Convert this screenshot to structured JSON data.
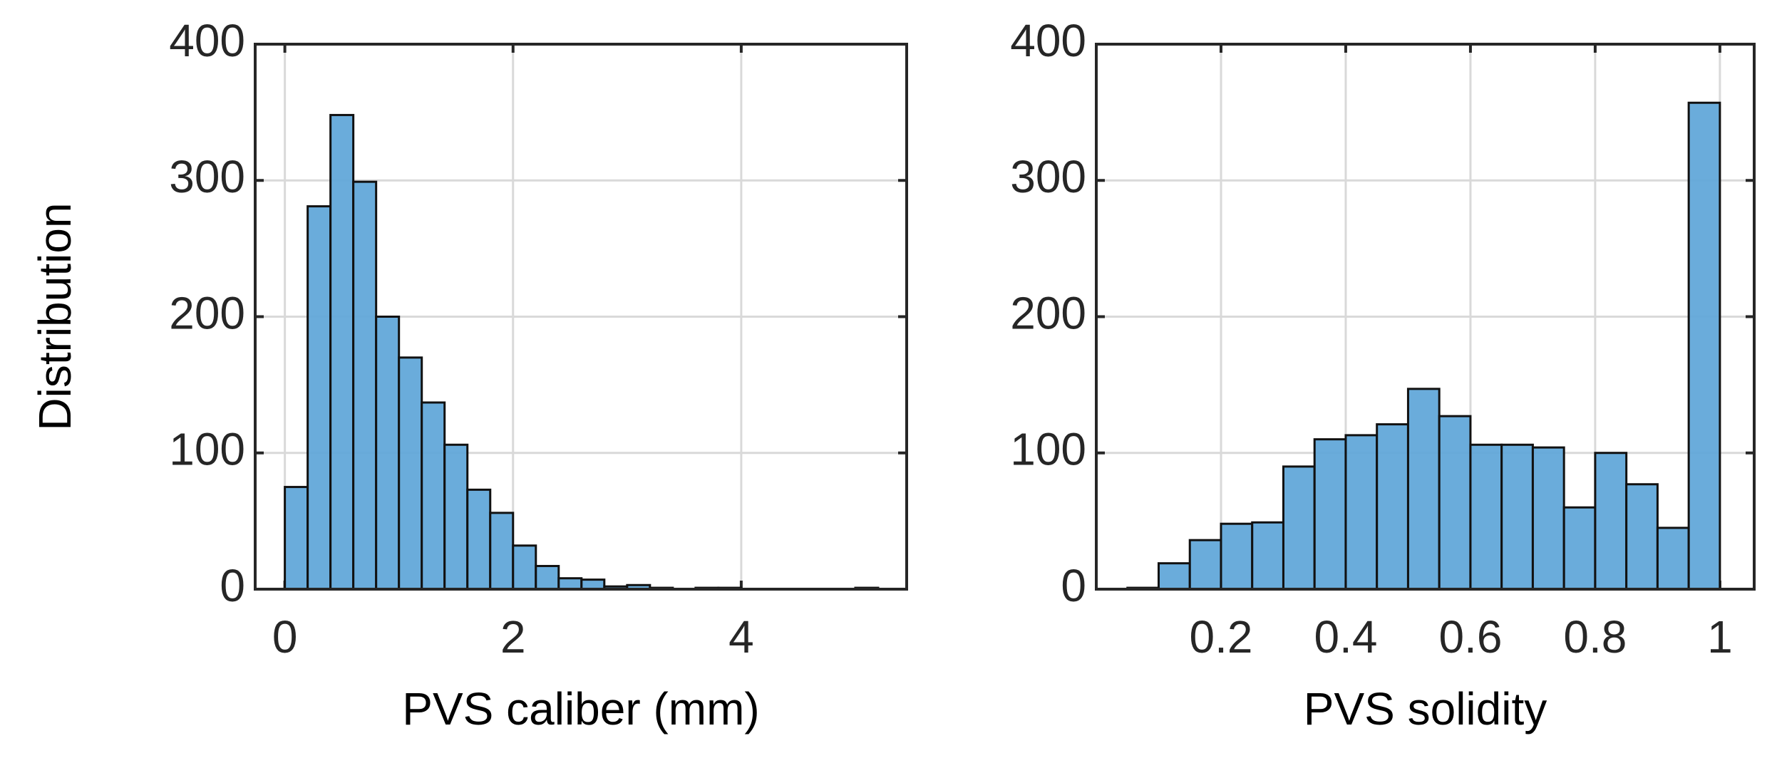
{
  "chart_data": [
    {
      "type": "histogram",
      "ylabel": "Distribution",
      "xlabel": "PVS caliber (mm)",
      "bins": [
        0,
        0.2,
        0.4,
        0.6,
        0.8,
        1.0,
        1.2,
        1.4,
        1.6,
        1.8,
        2.0,
        2.2,
        2.4,
        2.6,
        2.8,
        3.0,
        3.2,
        3.4,
        3.6,
        3.8,
        4.0,
        4.2,
        4.4,
        4.6,
        4.8,
        5.0,
        5.2
      ],
      "values": [
        75,
        281,
        348,
        299,
        200,
        170,
        137,
        106,
        73,
        56,
        32,
        17,
        8,
        7,
        2,
        3,
        1,
        0,
        1,
        1,
        0,
        0,
        0,
        0,
        0,
        1
      ],
      "color": "#62a8d9",
      "xlim": [
        -0.26,
        5.45
      ],
      "xticks": [
        0,
        2,
        4
      ],
      "ylim": [
        0,
        400
      ],
      "yticks": [
        0,
        100,
        200,
        300,
        400
      ],
      "grid": true
    },
    {
      "type": "histogram",
      "xlabel": "PVS solidity",
      "bins": [
        0.05,
        0.1,
        0.15,
        0.2,
        0.25,
        0.3,
        0.35,
        0.4,
        0.45,
        0.5,
        0.55,
        0.6,
        0.65,
        0.7,
        0.75,
        0.8,
        0.85,
        0.9,
        0.95,
        1.0
      ],
      "values": [
        1,
        19,
        36,
        48,
        49,
        90,
        110,
        113,
        121,
        147,
        127,
        106,
        106,
        104,
        60,
        100,
        77,
        45,
        357
      ],
      "color": "#62a8d9",
      "xlim": [
        0,
        1.055
      ],
      "xticks": [
        0.2,
        0.4,
        0.6,
        0.8,
        1
      ],
      "ylim": [
        0,
        400
      ],
      "yticks": [
        0,
        100,
        200,
        300,
        400
      ],
      "grid": true
    }
  ]
}
